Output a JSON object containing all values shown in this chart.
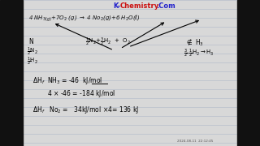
{
  "bg_color": "#d8d8d8",
  "line_color": "#b0b8c8",
  "title_k": "K-",
  "title_chem": "Chemistry",
  "title_dot_com": ".Com",
  "title_color_k": "#2222cc",
  "title_color_chem": "#cc1111",
  "title_color_dot_com": "#2222cc",
  "timestamp": "2024-08-11  22:12:45"
}
